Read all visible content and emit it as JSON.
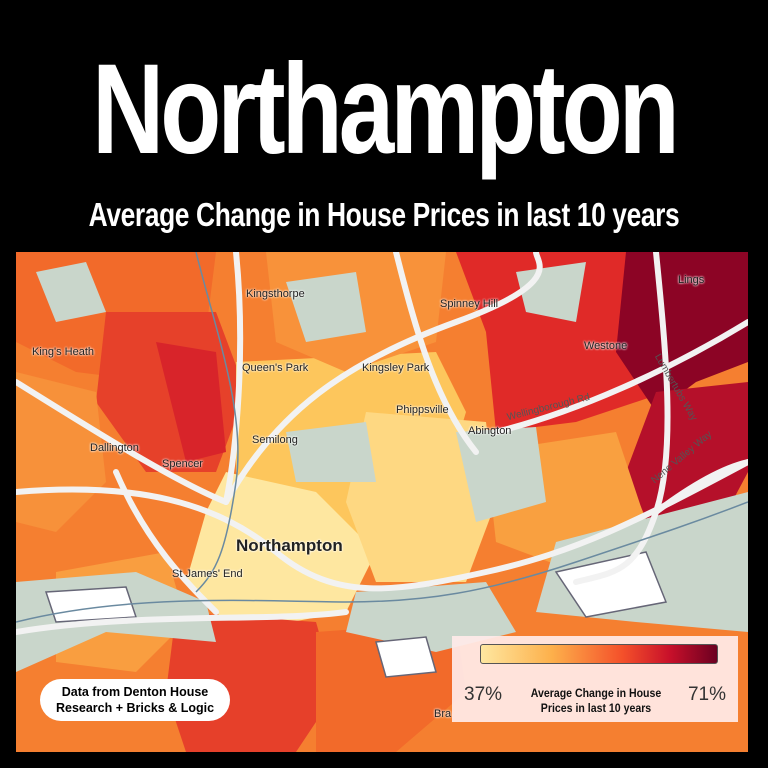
{
  "title": "Northampton",
  "subtitle": "Average Change in House Prices in last 10 years",
  "map": {
    "places": [
      "Kingsthorpe",
      "Spinney Hill",
      "Lings",
      "King's Heath",
      "Queen's Park",
      "Kingsley Park",
      "Westone",
      "Phippsville",
      "Abington",
      "Dallington",
      "Semilong",
      "Spencer",
      "Northampton",
      "St James' End",
      "Bra"
    ],
    "roads": [
      "Wellingborough Rd",
      "Lumbertubs Way",
      "Nene Valley Way"
    ],
    "colors": {
      "low": "#fee7a0",
      "mid": "#f4502a",
      "high": "#6b0021",
      "park": "#c9d6cb",
      "road": "#f2f2f2"
    }
  },
  "legend": {
    "min": "37%",
    "max": "71%",
    "label": "Average Change in House Prices in last 10 years"
  },
  "source": "Data from Denton House Research + Bricks & Logic"
}
